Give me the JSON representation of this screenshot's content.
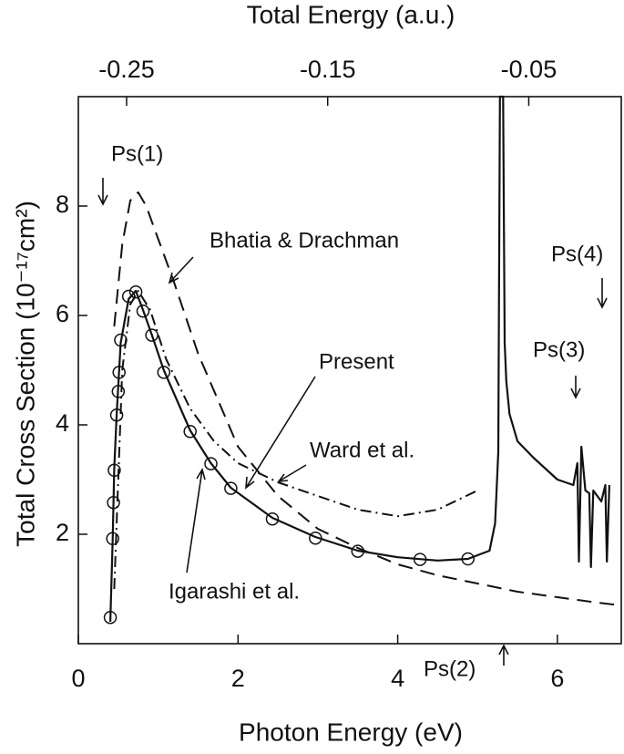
{
  "chart_data": {
    "type": "line",
    "xlabel": "Photon Energy (eV)",
    "x2label": "Total Energy (a.u.)",
    "ylabel": "Total Cross Section (10⁻¹⁷cm²)",
    "xlim": [
      0,
      6.8
    ],
    "xticks": [
      0,
      2,
      4,
      6
    ],
    "x2lim": [
      -0.274,
      -0.004
    ],
    "x2ticks": [
      -0.25,
      -0.15,
      -0.05
    ],
    "ylim": [
      0,
      10
    ],
    "yticks": [
      2,
      4,
      6,
      8
    ],
    "annotations": [
      "Ps(1)",
      "Ps(2)",
      "Ps(3)",
      "Ps(4)"
    ],
    "series": [
      {
        "name": "Bhatia & Drachman",
        "color": "#111111",
        "style": "dashed",
        "x": [
          0.45,
          0.55,
          0.65,
          0.75,
          0.85,
          1.0,
          1.2,
          1.5,
          2.0,
          2.5,
          3.0,
          3.5,
          4.0,
          4.5,
          5.0,
          5.5,
          6.0,
          6.5,
          6.8
        ],
        "values": [
          5.8,
          7.3,
          8.1,
          8.25,
          8.0,
          7.4,
          6.6,
          5.3,
          3.6,
          2.7,
          2.1,
          1.75,
          1.45,
          1.25,
          1.1,
          0.95,
          0.85,
          0.75,
          0.7
        ]
      },
      {
        "name": "Ward et al.",
        "color": "#111111",
        "style": "dashdot",
        "x": [
          0.45,
          0.55,
          0.65,
          0.75,
          0.9,
          1.1,
          1.4,
          1.7,
          2.0,
          2.5,
          3.0,
          3.5,
          4.0,
          4.5,
          5.0
        ],
        "values": [
          1.0,
          5.0,
          6.2,
          6.45,
          6.1,
          5.2,
          4.3,
          3.7,
          3.3,
          2.95,
          2.7,
          2.45,
          2.33,
          2.45,
          2.8
        ]
      },
      {
        "name": "Present",
        "color": "#111111",
        "style": "solid",
        "x": [
          0.4,
          0.43,
          0.45,
          0.48,
          0.53,
          0.63,
          0.72,
          0.81,
          0.92,
          1.07,
          1.4,
          1.66,
          1.91,
          2.43,
          2.97,
          3.5,
          4.0,
          4.5,
          4.88,
          5.15,
          5.22,
          5.26,
          5.28,
          5.3,
          5.32,
          5.34,
          5.36,
          5.4,
          5.5,
          5.7,
          6.0,
          6.2,
          6.25,
          6.27,
          6.3,
          6.35,
          6.4,
          6.42,
          6.45,
          6.5,
          6.55,
          6.6,
          6.62,
          6.65
        ],
        "values": [
          0.4,
          1.9,
          3.2,
          4.2,
          5.5,
          6.3,
          6.45,
          6.1,
          5.65,
          5.0,
          3.9,
          3.3,
          2.85,
          2.3,
          1.95,
          1.7,
          1.58,
          1.52,
          1.55,
          1.7,
          2.2,
          3.5,
          10,
          10,
          10,
          5.5,
          4.8,
          4.2,
          3.7,
          3.4,
          3.0,
          2.9,
          3.3,
          1.5,
          3.6,
          2.8,
          2.75,
          1.4,
          2.8,
          2.7,
          2.6,
          2.9,
          1.5,
          2.9
        ]
      },
      {
        "name": "Igarashi et al.",
        "color": "#111111",
        "style": "markers",
        "x": [
          0.4,
          0.43,
          0.44,
          0.45,
          0.48,
          0.5,
          0.51,
          0.53,
          0.63,
          0.72,
          0.81,
          0.92,
          1.07,
          1.4,
          1.66,
          1.91,
          2.43,
          2.97,
          3.5,
          4.28,
          4.88
        ],
        "values": [
          0.48,
          1.92,
          2.58,
          3.17,
          4.18,
          4.61,
          4.96,
          5.55,
          6.35,
          6.43,
          6.08,
          5.64,
          4.96,
          3.88,
          3.29,
          2.84,
          2.28,
          1.93,
          1.69,
          1.54,
          1.55
        ]
      }
    ]
  }
}
